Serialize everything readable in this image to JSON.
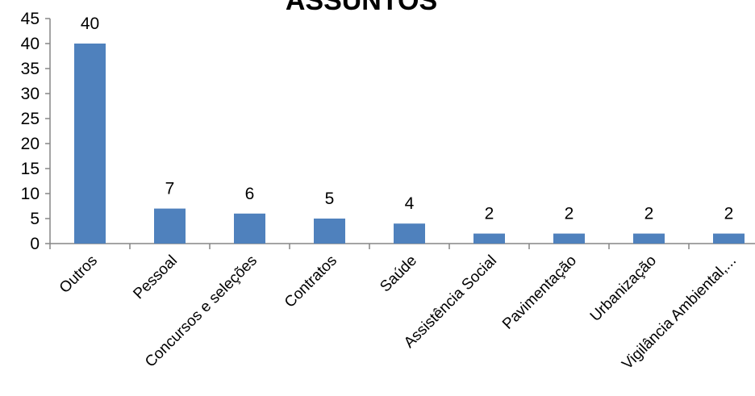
{
  "chart_data": {
    "type": "bar",
    "title": "ASSUNTOS",
    "xlabel": "",
    "ylabel": "",
    "categories": [
      "Outros",
      "Pessoal",
      "Concursos e seleções",
      "Contratos",
      "Saúde",
      "Assistência Social",
      "Pavimentação",
      "Urbanização",
      "Vigilância Ambiental,..."
    ],
    "values": [
      40,
      7,
      6,
      5,
      4,
      2,
      2,
      2,
      2
    ],
    "ylim": [
      0,
      45
    ],
    "yticks": [
      "0",
      "5",
      "10",
      "15",
      "20",
      "25",
      "30",
      "35",
      "40",
      "45"
    ],
    "data_labels": [
      "40",
      "7",
      "6",
      "5",
      "4",
      "2",
      "2",
      "2",
      "2"
    ],
    "grid": false,
    "legend": "none",
    "bar_color": "#4f81bd",
    "axis_color": "#868686"
  }
}
